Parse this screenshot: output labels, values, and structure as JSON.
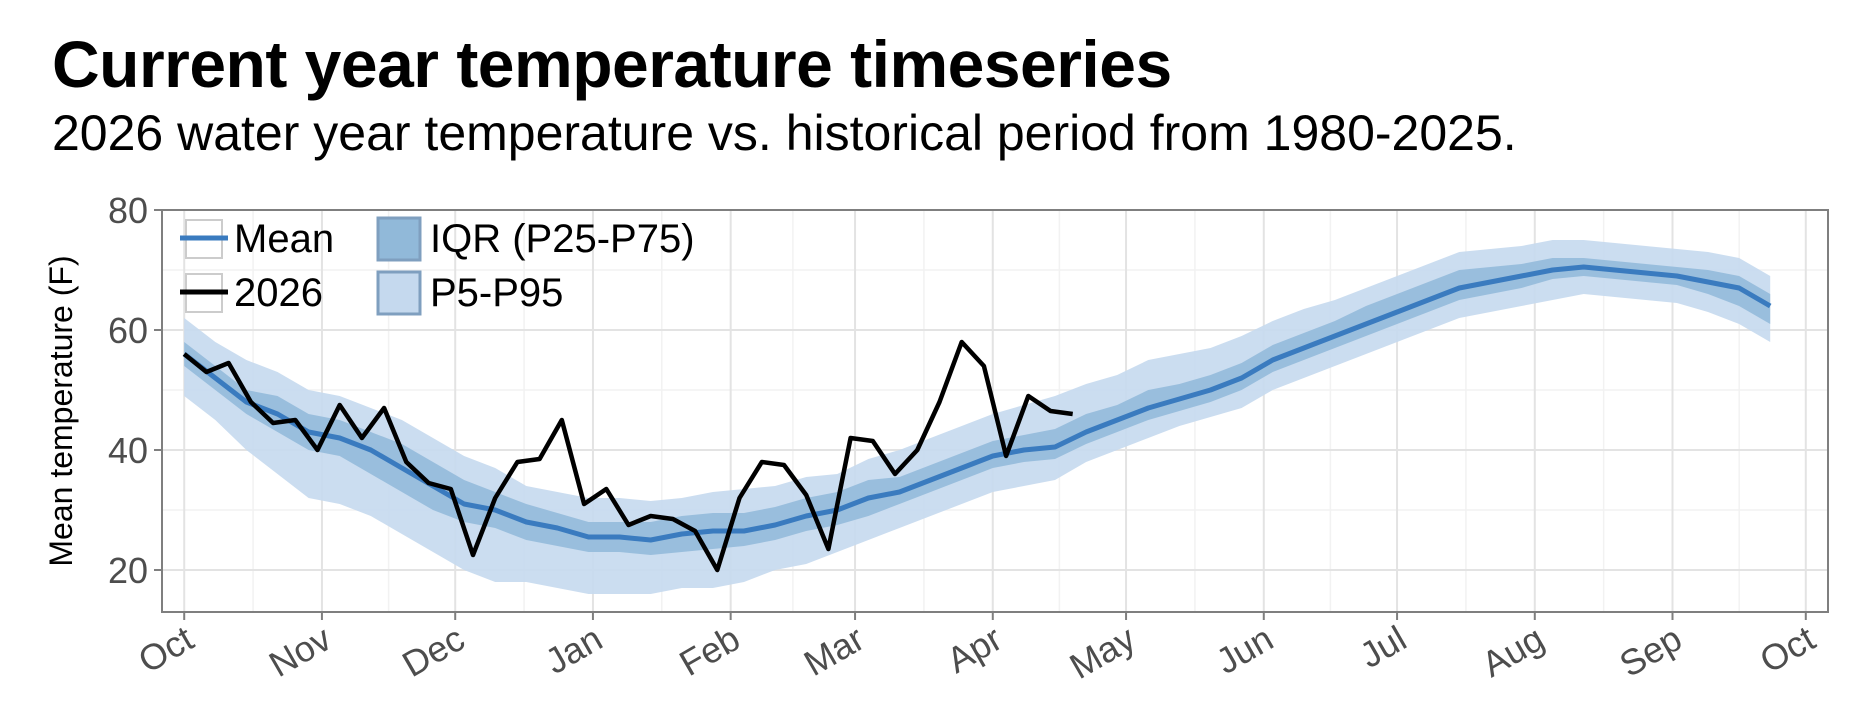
{
  "chart_data": {
    "type": "line",
    "title": "Current year temperature timeseries",
    "subtitle": "2026 water year temperature vs. historical period from 1980-2025.",
    "ylabel": "Mean temperature (F)",
    "xlabel": "",
    "ylim": [
      13,
      80
    ],
    "yticks": [
      20,
      40,
      60,
      80
    ],
    "xlim": [
      "2025-09-26",
      "2026-10-06"
    ],
    "xticks": [
      {
        "date": "2025-10-01",
        "label": "Oct"
      },
      {
        "date": "2025-11-01",
        "label": "Nov"
      },
      {
        "date": "2025-12-01",
        "label": "Dec"
      },
      {
        "date": "2026-01-01",
        "label": "Jan"
      },
      {
        "date": "2026-02-01",
        "label": "Feb"
      },
      {
        "date": "2026-03-01",
        "label": "Mar"
      },
      {
        "date": "2026-04-01",
        "label": "Apr"
      },
      {
        "date": "2026-05-01",
        "label": "May"
      },
      {
        "date": "2026-06-01",
        "label": "Jun"
      },
      {
        "date": "2026-07-01",
        "label": "Jul"
      },
      {
        "date": "2026-08-01",
        "label": "Aug"
      },
      {
        "date": "2026-09-01",
        "label": "Sep"
      },
      {
        "date": "2026-10-01",
        "label": "Oct"
      }
    ],
    "grid": true,
    "legend_position": "top-left",
    "legend": [
      {
        "label": "Mean",
        "kind": "line",
        "color": "#3a7bbf"
      },
      {
        "label": "IQR (P25-P75)",
        "kind": "band",
        "color": "#91b9d9"
      },
      {
        "label": "2026",
        "kind": "line",
        "color": "#000000"
      },
      {
        "label": "P5-P95",
        "kind": "band",
        "color": "#c5d9ee"
      }
    ],
    "colors": {
      "mean": "#3a7bbf",
      "iqr": "#91b9d9",
      "p5p95": "#c5d9ee",
      "current": "#000000",
      "grid": "#e3e3e3",
      "frame": "#7f7f7f"
    },
    "historical": {
      "x": [
        "2025-10-01",
        "2025-10-08",
        "2025-10-15",
        "2025-10-22",
        "2025-10-29",
        "2025-11-05",
        "2025-11-12",
        "2025-11-19",
        "2025-11-26",
        "2025-12-03",
        "2025-12-10",
        "2025-12-17",
        "2025-12-24",
        "2025-12-31",
        "2026-01-07",
        "2026-01-14",
        "2026-01-21",
        "2026-01-28",
        "2026-02-04",
        "2026-02-11",
        "2026-02-18",
        "2026-02-25",
        "2026-03-04",
        "2026-03-11",
        "2026-03-18",
        "2026-03-25",
        "2026-04-01",
        "2026-04-08",
        "2026-04-15",
        "2026-04-22",
        "2026-04-29",
        "2026-05-06",
        "2026-05-13",
        "2026-05-20",
        "2026-05-27",
        "2026-06-03",
        "2026-06-10",
        "2026-06-17",
        "2026-06-24",
        "2026-07-01",
        "2026-07-08",
        "2026-07-15",
        "2026-07-22",
        "2026-07-29",
        "2026-08-05",
        "2026-08-12",
        "2026-08-19",
        "2026-08-26",
        "2026-09-02",
        "2026-09-09",
        "2026-09-16",
        "2026-09-23"
      ],
      "mean": [
        56,
        52,
        48,
        46,
        43,
        42,
        40,
        37,
        34,
        31,
        30,
        28,
        27,
        25.5,
        25.5,
        25,
        26,
        26.5,
        26.5,
        27.5,
        29,
        30,
        32,
        33,
        35,
        37,
        39,
        40,
        40.5,
        43,
        45,
        47,
        48.5,
        50,
        52,
        55,
        57,
        59,
        61,
        63,
        65,
        67,
        68,
        69,
        70,
        70.5,
        70,
        69.5,
        69,
        68,
        67,
        64
      ],
      "p25": [
        54,
        50,
        46,
        43,
        40,
        39,
        36,
        33,
        30,
        28,
        27,
        25,
        24,
        23,
        23,
        22.5,
        23,
        23.5,
        24,
        25,
        26.5,
        27.5,
        29,
        31,
        33,
        35,
        37,
        38,
        38.5,
        41,
        43,
        45,
        46.5,
        48,
        50,
        53,
        55,
        57,
        59,
        61,
        63,
        65,
        66,
        67,
        68.5,
        69,
        68.5,
        68,
        67.5,
        66,
        64,
        61
      ],
      "p75": [
        58,
        54,
        50,
        49,
        46,
        45,
        43,
        41,
        38,
        35,
        33,
        31,
        29.5,
        28,
        28,
        28,
        29,
        29.5,
        29.5,
        30.5,
        32,
        33,
        35,
        35.5,
        37.5,
        39.5,
        41.5,
        42.5,
        43.5,
        46,
        47.5,
        50,
        51,
        52.5,
        54.5,
        57.5,
        59.5,
        61.5,
        64,
        66,
        68,
        70,
        70.5,
        71,
        72,
        72,
        71.5,
        71,
        70.5,
        70,
        69,
        66
      ],
      "p5": [
        49,
        45,
        40,
        36,
        32,
        31,
        29,
        26,
        23,
        20,
        18,
        18,
        17,
        16,
        16,
        16,
        17,
        17,
        18,
        20,
        21,
        23,
        25,
        27,
        29,
        31,
        33,
        34,
        35,
        38,
        40,
        42,
        44,
        45.5,
        47,
        50,
        52,
        54,
        56,
        58,
        60,
        62,
        63,
        64,
        65,
        66,
        65.5,
        65,
        64.5,
        63,
        61,
        58
      ],
      "p95": [
        62,
        58,
        55,
        53,
        50,
        49,
        47,
        45,
        42,
        39,
        37,
        34,
        33,
        32,
        32,
        31.5,
        32,
        33,
        33.5,
        34,
        35.5,
        36,
        38.5,
        40,
        42,
        44,
        46,
        47.5,
        49,
        51,
        52.5,
        55,
        56,
        57,
        59,
        61.5,
        63.5,
        65,
        67,
        69,
        71,
        73,
        73.5,
        74,
        75,
        75,
        74.5,
        74,
        73.5,
        73,
        72,
        69
      ]
    },
    "series": [
      {
        "name": "2026",
        "x": [
          "2025-10-01",
          "2025-10-06",
          "2025-10-11",
          "2025-10-16",
          "2025-10-21",
          "2025-10-26",
          "2025-10-31",
          "2025-11-05",
          "2025-11-10",
          "2025-11-15",
          "2025-11-20",
          "2025-11-25",
          "2025-11-30",
          "2025-12-05",
          "2025-12-10",
          "2025-12-15",
          "2025-12-20",
          "2025-12-25",
          "2025-12-30",
          "2026-01-04",
          "2026-01-09",
          "2026-01-14",
          "2026-01-19",
          "2026-01-24",
          "2026-01-29",
          "2026-02-03",
          "2026-02-08",
          "2026-02-13",
          "2026-02-18",
          "2026-02-23",
          "2026-02-28",
          "2026-03-05",
          "2026-03-10",
          "2026-03-15",
          "2026-03-20",
          "2026-03-25",
          "2026-03-30",
          "2026-04-04",
          "2026-04-09",
          "2026-04-14",
          "2026-04-19"
        ],
        "values": [
          56,
          53,
          54.5,
          48,
          44.5,
          45,
          40,
          47.5,
          42,
          47,
          38,
          34.5,
          33.5,
          22.5,
          32,
          38,
          38.5,
          45,
          31,
          33.5,
          27.5,
          29,
          28.5,
          26.5,
          20,
          32,
          38,
          37.5,
          32.5,
          23.5,
          42,
          41.5,
          36,
          40,
          48,
          58,
          54,
          39,
          49,
          46.5,
          46
        ]
      }
    ]
  }
}
